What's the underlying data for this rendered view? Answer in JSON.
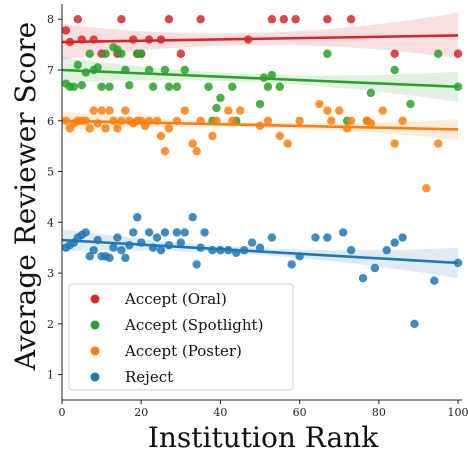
{
  "chart_data": {
    "type": "scatter",
    "title": "",
    "xlabel": "Institution Rank",
    "ylabel": "Average Reviewer Score",
    "xlim": [
      0,
      101
    ],
    "ylim": [
      0.5,
      8.3
    ],
    "xticks": [
      0,
      20,
      40,
      60,
      80,
      100
    ],
    "yticks": [
      1,
      2,
      3,
      4,
      5,
      6,
      7,
      8
    ],
    "grid": false,
    "legend_position": "lower-left",
    "regression_lines": true,
    "confidence_bands": true,
    "series": [
      {
        "name": "Accept (Oral)",
        "color": "#d62728",
        "fit": [
          [
            0,
            7.55
          ],
          [
            100,
            7.68
          ]
        ],
        "band_halfwidth": [
          0.35,
          0.12,
          0.45
        ],
        "points": [
          [
            1,
            7.78
          ],
          [
            2,
            7.55
          ],
          [
            4,
            8.0
          ],
          [
            5,
            7.6
          ],
          [
            8,
            7.6
          ],
          [
            10,
            7.32
          ],
          [
            14,
            7.32
          ],
          [
            15,
            8.0
          ],
          [
            18,
            7.6
          ],
          [
            19,
            7.32
          ],
          [
            20,
            7.32
          ],
          [
            22,
            7.6
          ],
          [
            25,
            7.6
          ],
          [
            27,
            8.0
          ],
          [
            30,
            7.32
          ],
          [
            35,
            8.0
          ],
          [
            47,
            7.6
          ],
          [
            53,
            8.0
          ],
          [
            56,
            8.0
          ],
          [
            59,
            8.0
          ],
          [
            67,
            8.0
          ],
          [
            73,
            8.0
          ],
          [
            84,
            7.32
          ],
          [
            100,
            7.32
          ]
        ]
      },
      {
        "name": "Accept (Spotlight)",
        "color": "#2ca02c",
        "fit": [
          [
            0,
            7.0
          ],
          [
            100,
            6.67
          ]
        ],
        "band_halfwidth": [
          0.25,
          0.08,
          0.3
        ],
        "points": [
          [
            1,
            6.73
          ],
          [
            2,
            6.67
          ],
          [
            3,
            6.67
          ],
          [
            4,
            7.1
          ],
          [
            5,
            6.7
          ],
          [
            6,
            6.95
          ],
          [
            7,
            7.32
          ],
          [
            8,
            7.0
          ],
          [
            9,
            7.05
          ],
          [
            10,
            6.67
          ],
          [
            11,
            7.32
          ],
          [
            12,
            6.67
          ],
          [
            13,
            7.45
          ],
          [
            14,
            7.4
          ],
          [
            15,
            7.32
          ],
          [
            16,
            7.0
          ],
          [
            17,
            6.7
          ],
          [
            19,
            7.32
          ],
          [
            20,
            7.32
          ],
          [
            22,
            7.0
          ],
          [
            23,
            6.67
          ],
          [
            26,
            7.0
          ],
          [
            27,
            6.67
          ],
          [
            29,
            6.67
          ],
          [
            31,
            7.0
          ],
          [
            37,
            6.67
          ],
          [
            38,
            6.0
          ],
          [
            39,
            6.25
          ],
          [
            40,
            6.45
          ],
          [
            43,
            6.67
          ],
          [
            44,
            6.0
          ],
          [
            50,
            6.33
          ],
          [
            51,
            6.85
          ],
          [
            52,
            6.67
          ],
          [
            53,
            6.9
          ],
          [
            55,
            6.67
          ],
          [
            67,
            7.32
          ],
          [
            72,
            6.0
          ],
          [
            78,
            6.55
          ],
          [
            77,
            6.0
          ],
          [
            84,
            7.0
          ],
          [
            88,
            6.33
          ],
          [
            95,
            7.32
          ],
          [
            100,
            6.67
          ]
        ]
      },
      {
        "name": "Accept (Poster)",
        "color": "#ff7f0e",
        "fit": [
          [
            0,
            6.0
          ],
          [
            100,
            5.83
          ]
        ],
        "band_halfwidth": [
          0.18,
          0.05,
          0.2
        ],
        "points": [
          [
            1,
            6.0
          ],
          [
            2,
            5.85
          ],
          [
            3,
            5.95
          ],
          [
            4,
            6.0
          ],
          [
            5,
            6.0
          ],
          [
            6,
            6.0
          ],
          [
            7,
            5.85
          ],
          [
            8,
            6.2
          ],
          [
            9,
            5.95
          ],
          [
            10,
            6.2
          ],
          [
            11,
            5.85
          ],
          [
            12,
            6.2
          ],
          [
            13,
            6.0
          ],
          [
            14,
            5.85
          ],
          [
            15,
            6.0
          ],
          [
            16,
            6.2
          ],
          [
            17,
            6.0
          ],
          [
            18,
            5.95
          ],
          [
            19,
            6.0
          ],
          [
            20,
            6.0
          ],
          [
            21,
            5.9
          ],
          [
            22,
            6.0
          ],
          [
            24,
            6.0
          ],
          [
            25,
            5.7
          ],
          [
            26,
            5.4
          ],
          [
            27,
            5.85
          ],
          [
            29,
            6.0
          ],
          [
            31,
            6.2
          ],
          [
            33,
            5.55
          ],
          [
            34,
            5.4
          ],
          [
            35,
            6.0
          ],
          [
            38,
            5.7
          ],
          [
            39,
            6.0
          ],
          [
            42,
            6.2
          ],
          [
            43,
            6.0
          ],
          [
            45,
            6.2
          ],
          [
            50,
            5.9
          ],
          [
            52,
            6.0
          ],
          [
            55,
            5.7
          ],
          [
            57,
            5.55
          ],
          [
            60,
            6.0
          ],
          [
            65,
            6.33
          ],
          [
            67,
            6.2
          ],
          [
            68,
            6.0
          ],
          [
            70,
            6.2
          ],
          [
            72,
            5.85
          ],
          [
            73,
            6.0
          ],
          [
            77,
            6.0
          ],
          [
            78,
            5.95
          ],
          [
            81,
            6.2
          ],
          [
            84,
            5.55
          ],
          [
            86,
            6.0
          ],
          [
            92,
            4.67
          ],
          [
            95,
            5.55
          ]
        ]
      },
      {
        "name": "Reject",
        "color": "#1f77b4",
        "fit": [
          [
            0,
            3.65
          ],
          [
            100,
            3.2
          ]
        ],
        "band_halfwidth": [
          0.22,
          0.07,
          0.3
        ],
        "points": [
          [
            1,
            3.5
          ],
          [
            2,
            3.55
          ],
          [
            3,
            3.6
          ],
          [
            4,
            3.7
          ],
          [
            5,
            3.75
          ],
          [
            6,
            3.8
          ],
          [
            7,
            3.33
          ],
          [
            8,
            3.45
          ],
          [
            9,
            3.65
          ],
          [
            10,
            3.33
          ],
          [
            11,
            3.33
          ],
          [
            12,
            3.3
          ],
          [
            13,
            3.5
          ],
          [
            14,
            3.7
          ],
          [
            15,
            3.45
          ],
          [
            16,
            3.3
          ],
          [
            17,
            3.55
          ],
          [
            18,
            3.8
          ],
          [
            19,
            4.1
          ],
          [
            20,
            3.6
          ],
          [
            22,
            3.8
          ],
          [
            23,
            3.5
          ],
          [
            24,
            3.7
          ],
          [
            25,
            3.45
          ],
          [
            26,
            3.8
          ],
          [
            27,
            3.55
          ],
          [
            29,
            3.8
          ],
          [
            30,
            3.6
          ],
          [
            31,
            3.8
          ],
          [
            33,
            4.1
          ],
          [
            34,
            3.17
          ],
          [
            35,
            3.5
          ],
          [
            36,
            3.8
          ],
          [
            38,
            3.45
          ],
          [
            40,
            3.45
          ],
          [
            42,
            3.45
          ],
          [
            44,
            3.4
          ],
          [
            46,
            3.45
          ],
          [
            48,
            3.6
          ],
          [
            50,
            3.5
          ],
          [
            53,
            3.7
          ],
          [
            58,
            3.17
          ],
          [
            60,
            3.33
          ],
          [
            64,
            3.7
          ],
          [
            67,
            3.7
          ],
          [
            71,
            3.8
          ],
          [
            73,
            3.45
          ],
          [
            76,
            2.9
          ],
          [
            79,
            3.1
          ],
          [
            82,
            3.45
          ],
          [
            84,
            3.6
          ],
          [
            86,
            3.7
          ],
          [
            89,
            2.0
          ],
          [
            94,
            2.85
          ],
          [
            100,
            3.2
          ]
        ]
      }
    ]
  }
}
